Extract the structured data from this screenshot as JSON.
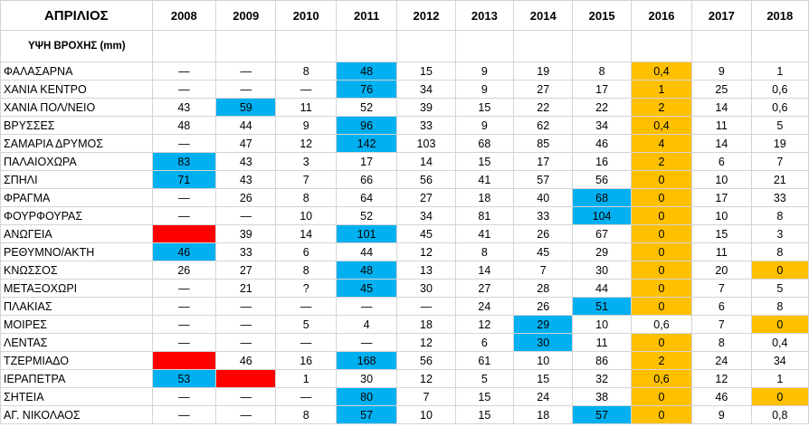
{
  "title": "ΑΠΡΙΛΙΟΣ",
  "unit_label": "ΥΨΗ ΒΡΟΧΗΣ (mm)",
  "years": [
    "2008",
    "2009",
    "2010",
    "2011",
    "2012",
    "2013",
    "2014",
    "2015",
    "2016",
    "2017",
    "2018"
  ],
  "colors": {
    "blue": "#00b0f0",
    "orange": "#ffc000",
    "red": "#ff0000",
    "grid": "#d4d4d4"
  },
  "rows": [
    {
      "station": "ΦΑΛΑΣΑΡΝΑ",
      "values": [
        "—",
        "—",
        "8",
        "48",
        "15",
        "9",
        "19",
        "8",
        "0,4",
        "9",
        "1"
      ],
      "highlights": {
        "3": "blue",
        "8": "orange"
      }
    },
    {
      "station": "ΧΑΝΙΑ ΚΕΝΤΡΟ",
      "values": [
        "—",
        "—",
        "—",
        "76",
        "34",
        "9",
        "27",
        "17",
        "1",
        "25",
        "0,6"
      ],
      "highlights": {
        "3": "blue",
        "8": "orange"
      }
    },
    {
      "station": "ΧΑΝΙΑ ΠΟΛ/ΝΕΙΟ",
      "values": [
        "43",
        "59",
        "11",
        "52",
        "39",
        "15",
        "22",
        "22",
        "2",
        "14",
        "0,6"
      ],
      "highlights": {
        "1": "blue",
        "8": "orange"
      }
    },
    {
      "station": "ΒΡΥΣΣΕΣ",
      "values": [
        "48",
        "44",
        "9",
        "96",
        "33",
        "9",
        "62",
        "34",
        "0,4",
        "11",
        "5"
      ],
      "highlights": {
        "3": "blue",
        "8": "orange"
      }
    },
    {
      "station": "ΣΑΜΑΡΙΑ ΔΡΥΜΟΣ",
      "values": [
        "—",
        "47",
        "12",
        "142",
        "103",
        "68",
        "85",
        "46",
        "4",
        "14",
        "19"
      ],
      "highlights": {
        "3": "blue",
        "8": "orange"
      }
    },
    {
      "station": "ΠΑΛΑΙΟΧΩΡΑ",
      "values": [
        "83",
        "43",
        "3",
        "17",
        "14",
        "15",
        "17",
        "16",
        "2",
        "6",
        "7"
      ],
      "highlights": {
        "0": "blue",
        "8": "orange"
      }
    },
    {
      "station": "ΣΠΗΛΙ",
      "values": [
        "71",
        "43",
        "7",
        "66",
        "56",
        "41",
        "57",
        "56",
        "0",
        "10",
        "21"
      ],
      "highlights": {
        "0": "blue",
        "8": "orange"
      }
    },
    {
      "station": "ΦΡΑΓΜΑ",
      "values": [
        "—",
        "26",
        "8",
        "64",
        "27",
        "18",
        "40",
        "68",
        "0",
        "17",
        "33"
      ],
      "highlights": {
        "7": "blue",
        "8": "orange"
      }
    },
    {
      "station": "ΦΟΥΡΦΟΥΡΑΣ",
      "values": [
        "—",
        "—",
        "10",
        "52",
        "34",
        "81",
        "33",
        "104",
        "0",
        "10",
        "8"
      ],
      "highlights": {
        "7": "blue",
        "8": "orange"
      }
    },
    {
      "station": "ΑΝΩΓΕΙΑ",
      "values": [
        "",
        "39",
        "14",
        "101",
        "45",
        "41",
        "26",
        "67",
        "0",
        "15",
        "3"
      ],
      "highlights": {
        "0": "red",
        "3": "blue",
        "8": "orange"
      }
    },
    {
      "station": "ΡΕΘΥΜΝΟ/ΑΚΤΗ",
      "values": [
        "46",
        "33",
        "6",
        "44",
        "12",
        "8",
        "45",
        "29",
        "0",
        "11",
        "8"
      ],
      "highlights": {
        "0": "blue",
        "8": "orange"
      }
    },
    {
      "station": "ΚΝΩΣΣΟΣ",
      "values": [
        "26",
        "27",
        "8",
        "48",
        "13",
        "14",
        "7",
        "30",
        "0",
        "20",
        "0"
      ],
      "highlights": {
        "3": "blue",
        "8": "orange",
        "10": "orange"
      }
    },
    {
      "station": "ΜΕΤΑΞΟΧΩΡΙ",
      "values": [
        "—",
        "21",
        "?",
        "45",
        "30",
        "27",
        "28",
        "44",
        "0",
        "7",
        "5"
      ],
      "highlights": {
        "3": "blue",
        "8": "orange"
      }
    },
    {
      "station": "ΠΛΑΚΙΑΣ",
      "values": [
        "—",
        "—",
        "—",
        "—",
        "—",
        "24",
        "26",
        "51",
        "0",
        "6",
        "8"
      ],
      "highlights": {
        "7": "blue",
        "8": "orange"
      }
    },
    {
      "station": "ΜΟΙΡΕΣ",
      "values": [
        "—",
        "—",
        "5",
        "4",
        "18",
        "12",
        "29",
        "10",
        "0,6",
        "7",
        "0"
      ],
      "highlights": {
        "6": "blue",
        "10": "orange"
      }
    },
    {
      "station": "ΛΕΝΤΑΣ",
      "values": [
        "—",
        "—",
        "—",
        "—",
        "12",
        "6",
        "30",
        "11",
        "0",
        "8",
        "0,4"
      ],
      "highlights": {
        "6": "blue",
        "8": "orange"
      }
    },
    {
      "station": "ΤΖΕΡΜΙΑΔΟ",
      "values": [
        "",
        "46",
        "16",
        "168",
        "56",
        "61",
        "10",
        "86",
        "2",
        "24",
        "34"
      ],
      "highlights": {
        "0": "red",
        "3": "blue",
        "8": "orange"
      }
    },
    {
      "station": "ΙΕΡΑΠΕΤΡΑ",
      "values": [
        "53",
        "",
        "1",
        "30",
        "12",
        "5",
        "15",
        "32",
        "0,6",
        "12",
        "1"
      ],
      "highlights": {
        "0": "blue",
        "1": "red",
        "8": "orange"
      }
    },
    {
      "station": "ΣΗΤΕΙΑ",
      "values": [
        "—",
        "—",
        "—",
        "80",
        "7",
        "15",
        "24",
        "38",
        "0",
        "46",
        "0"
      ],
      "highlights": {
        "3": "blue",
        "8": "orange",
        "10": "orange"
      }
    },
    {
      "station": "ΑΓ. ΝΙΚΟΛΑΟΣ",
      "values": [
        "—",
        "—",
        "8",
        "57",
        "10",
        "15",
        "18",
        "57",
        "0",
        "9",
        "0,8"
      ],
      "highlights": {
        "3": "blue",
        "7": "blue",
        "8": "orange"
      }
    }
  ]
}
